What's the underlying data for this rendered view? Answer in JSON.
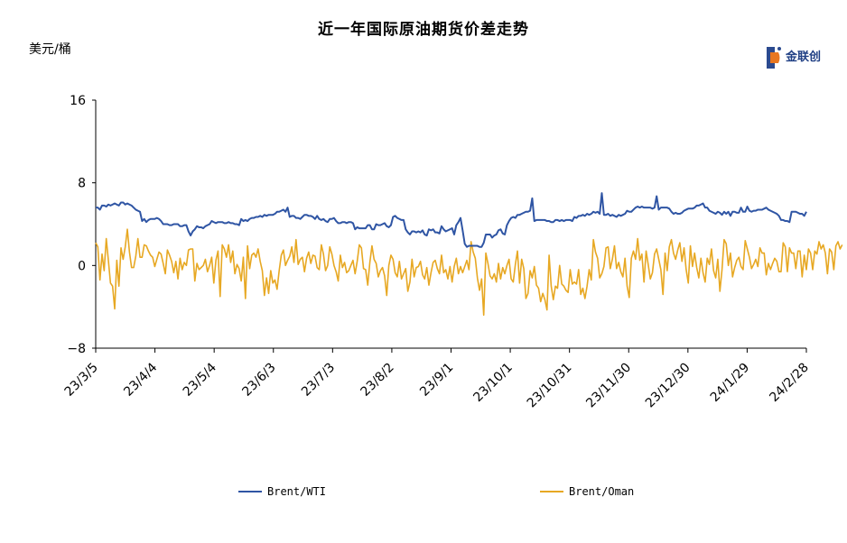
{
  "title": "近一年国际原油期货价差走势",
  "unit_label": "美元/桶",
  "logo": {
    "text": "金联创"
  },
  "chart_data": {
    "type": "line",
    "title": "近一年国际原油期货价差走势",
    "ylabel": "美元/桶",
    "ylim": [
      -8,
      16
    ],
    "y_ticks": [
      "16",
      "8",
      "0",
      "−8"
    ],
    "y_tick_values": [
      16,
      8,
      0,
      -8
    ],
    "x_tick_labels": [
      "23/3/5",
      "23/4/4",
      "23/5/4",
      "23/6/3",
      "23/7/3",
      "23/8/2",
      "23/9/1",
      "23/10/1",
      "23/10/31",
      "23/11/30",
      "23/12/30",
      "24/1/29",
      "24/2/28"
    ],
    "legend_position": "bottom",
    "grid": false,
    "series": [
      {
        "name": "Brent/WTI",
        "color": "#2f55a4",
        "values": [
          5.6,
          5.6,
          5.4,
          5.8,
          5.8,
          5.7,
          5.9,
          5.8,
          5.9,
          6.0,
          5.9,
          5.8,
          6.1,
          6.1,
          5.9,
          6.0,
          5.9,
          5.8,
          5.6,
          5.4,
          5.3,
          5.2,
          4.3,
          4.5,
          4.2,
          4.4,
          4.5,
          4.5,
          4.5,
          4.6,
          4.5,
          4.3,
          4.0,
          4.0,
          4.0,
          3.9,
          3.9,
          4.0,
          4.0,
          4.0,
          3.8,
          3.8,
          3.9,
          3.9,
          3.3,
          2.9,
          3.3,
          3.5,
          3.8,
          3.7,
          3.7,
          3.6,
          3.8,
          3.9,
          4.0,
          4.3,
          4.2,
          4.1,
          4.2,
          4.2,
          4.2,
          4.1,
          4.1,
          4.2,
          4.1,
          4.1,
          4.0,
          4.0,
          3.9,
          4.5,
          4.3,
          4.4,
          4.3,
          4.5,
          4.6,
          4.6,
          4.7,
          4.7,
          4.8,
          4.7,
          4.9,
          4.8,
          4.9,
          4.9,
          4.9,
          5.0,
          5.2,
          5.2,
          5.3,
          5.4,
          5.2,
          5.6,
          4.7,
          4.8,
          4.8,
          4.6,
          4.6,
          4.5,
          4.7,
          4.9,
          4.9,
          4.8,
          4.8,
          4.7,
          4.5,
          4.8,
          4.5,
          4.4,
          4.5,
          4.3,
          4.2,
          4.5,
          4.5,
          4.6,
          4.3,
          4.1,
          4.1,
          4.2,
          4.2,
          4.1,
          4.2,
          4.2,
          4.1,
          3.5,
          3.7,
          3.6,
          3.6,
          3.6,
          3.6,
          3.9,
          3.9,
          3.5,
          3.5,
          4.0,
          3.9,
          3.9,
          4.0,
          4.1,
          3.8,
          3.7,
          3.9,
          4.7,
          4.8,
          4.6,
          4.5,
          4.4,
          4.4,
          3.5,
          3.2,
          3.0,
          3.3,
          3.3,
          3.2,
          3.3,
          3.2,
          3.4,
          3.0,
          2.9,
          3.5,
          3.4,
          3.5,
          3.2,
          3.2,
          3.1,
          3.8,
          3.5,
          3.3,
          3.4,
          3.5,
          3.6,
          3.0,
          3.9,
          4.2,
          4.6,
          3.4,
          2.1,
          1.8,
          1.9,
          1.9,
          1.9,
          1.9,
          1.9,
          1.8,
          1.8,
          2.2,
          3.0,
          3.0,
          3.0,
          2.7,
          2.9,
          3.0,
          3.4,
          3.5,
          3.1,
          3.0,
          3.9,
          4.3,
          4.6,
          4.7,
          4.6,
          4.9,
          4.9,
          5.0,
          5.1,
          5.2,
          5.2,
          5.3,
          6.5,
          4.3,
          4.4,
          4.4,
          4.4,
          4.4,
          4.4,
          4.3,
          4.3,
          4.2,
          4.2,
          4.4,
          4.4,
          4.3,
          4.4,
          4.3,
          4.4,
          4.4,
          4.4,
          4.3,
          4.7,
          4.6,
          4.8,
          4.8,
          4.9,
          4.8,
          5.0,
          4.9,
          5.0,
          5.2,
          5.1,
          5.2,
          5.0,
          7.0,
          4.9,
          4.9,
          5.0,
          4.8,
          4.9,
          4.8,
          4.7,
          4.9,
          4.8,
          4.9,
          5.0,
          5.3,
          5.2,
          5.2,
          5.4,
          5.6,
          5.7,
          5.6,
          5.7,
          5.6,
          5.6,
          5.6,
          5.6,
          5.5,
          5.6,
          6.7,
          5.4,
          5.6,
          5.6,
          5.6,
          5.6,
          5.5,
          5.2,
          5.0,
          5.1,
          5.0,
          5.0,
          5.1,
          5.3,
          5.4,
          5.5,
          5.5,
          5.5,
          5.6,
          5.8,
          5.8,
          5.9,
          6.0,
          5.6,
          5.6,
          5.3,
          5.2,
          5.1,
          5.0,
          5.2,
          5.1,
          4.9,
          5.2,
          5.0,
          5.2,
          4.8,
          5.2,
          5.2,
          5.1,
          5.1,
          5.6,
          5.2,
          5.2,
          5.7,
          5.3,
          5.2,
          5.3,
          5.3,
          5.4,
          5.4,
          5.4,
          5.5,
          5.6,
          5.4,
          5.3,
          5.2,
          5.1,
          5.0,
          4.8,
          4.4,
          4.4,
          4.3,
          4.3,
          4.2,
          5.2,
          5.2,
          5.2,
          5.1,
          5.0,
          5.0,
          4.8,
          5.2
        ]
      },
      {
        "name": "Brent/Oman",
        "color": "#e7a823",
        "values": [
          2.2,
          1.8,
          -1.4,
          1.1,
          -0.5,
          2.6,
          0.5,
          -1.7,
          -2.0,
          -4.2,
          0.5,
          -2.0,
          1.7,
          0.6,
          1.8,
          3.5,
          1.3,
          -0.2,
          -0.2,
          0.9,
          2.6,
          0.8,
          0.8,
          2.0,
          1.9,
          1.4,
          1.0,
          0.8,
          -0.1,
          0.6,
          1.3,
          1.1,
          0.2,
          -0.8,
          1.5,
          1.0,
          0.4,
          -0.7,
          0.4,
          -1.3,
          0.7,
          -0.4,
          0.3,
          0.0,
          1.5,
          1.6,
          1.6,
          -1.5,
          0.2,
          -0.4,
          -0.2,
          0.0,
          0.6,
          -0.6,
          0.0,
          0.8,
          -1.7,
          0.5,
          1.4,
          -3.0,
          2.0,
          1.6,
          0.8,
          2.0,
          0.3,
          1.4,
          -0.8,
          0.1,
          -0.3,
          -1.5,
          0.8,
          -3.2,
          1.9,
          -0.3,
          1.0,
          1.2,
          0.8,
          1.6,
          0.4,
          -0.5,
          -2.9,
          -1.2,
          -2.7,
          -0.5,
          -1.7,
          -1.4,
          -2.3,
          -0.5,
          1.0,
          1.5,
          0.0,
          0.5,
          0.9,
          1.8,
          0.3,
          2.5,
          0.1,
          0.6,
          0.8,
          -0.6,
          0.7,
          1.3,
          0.2,
          1.0,
          0.9,
          -0.2,
          -0.4,
          2.0,
          1.1,
          -0.5,
          0.0,
          1.8,
          1.1,
          0.0,
          -0.6,
          -1.5,
          1.0,
          -0.2,
          0.3,
          -0.7,
          -0.5,
          0.0,
          0.5,
          -0.8,
          0.4,
          2.0,
          1.7,
          -0.3,
          -0.4,
          -1.9,
          0.3,
          1.9,
          0.6,
          0.2,
          -1.1,
          -0.5,
          -0.2,
          -1.0,
          -2.9,
          0.0,
          1.0,
          0.6,
          -0.7,
          -1.1,
          0.4,
          -1.3,
          -0.8,
          -0.3,
          -2.5,
          -1.6,
          0.6,
          -1.1,
          -0.2,
          -0.1,
          0.4,
          -0.9,
          -1.3,
          -0.2,
          -1.9,
          -0.7,
          0.3,
          0.5,
          -0.3,
          -0.8,
          1.0,
          -0.7,
          -0.4,
          -1.3,
          -0.1,
          -1.6,
          -0.1,
          0.7,
          -0.8,
          -0.1,
          -0.7,
          -0.1,
          0.5,
          -0.4,
          2.3,
          1.3,
          0.7,
          -1.2,
          -2.4,
          -1.3,
          -4.8,
          1.2,
          0.2,
          -1.0,
          -1.3,
          -0.8,
          -1.6,
          0.2,
          -1.3,
          -0.2,
          -0.8,
          0.0,
          0.6,
          -1.3,
          -1.6,
          0.1,
          1.4,
          -1.7,
          0.6,
          -0.3,
          -3.2,
          -2.7,
          -0.5,
          -1.2,
          -0.1,
          -1.9,
          -2.2,
          -3.5,
          -2.7,
          -3.3,
          -4.3,
          1.0,
          -2.0,
          -3.3,
          -2.0,
          -2.2,
          0.0,
          -1.8,
          -2.0,
          -2.4,
          -2.6,
          -0.4,
          -1.8,
          -1.6,
          -1.8,
          -0.4,
          -2.8,
          -2.2,
          -3.2,
          -2.0,
          -0.4,
          -1.4,
          2.5,
          1.3,
          0.7,
          -1.2,
          -0.8,
          -0.1,
          1.7,
          1.8,
          -0.3,
          0.6,
          1.9,
          -0.3,
          0.3,
          -0.6,
          -1.1,
          0.7,
          -2.0,
          -3.1,
          0.7,
          1.4,
          0.6,
          2.6,
          0.5,
          1.1,
          -1.6,
          1.4,
          0.1,
          -1.3,
          -0.7,
          1.1,
          1.6,
          0.6,
          -0.4,
          -2.8,
          1.2,
          -0.5,
          1.8,
          2.5,
          1.2,
          0.6,
          1.5,
          2.2,
          0.4,
          1.7,
          -0.4,
          -1.7,
          1.9,
          -0.1,
          1.2,
          -0.2,
          -1.2,
          0.7,
          -0.7,
          -1.6,
          0.7,
          0.1,
          1.6,
          -0.5,
          -1.2,
          0.6,
          -2.5,
          -0.4,
          2.5,
          2.1,
          0.0,
          1.2,
          -1.1,
          -0.2,
          0.5,
          0.8,
          -0.1,
          -0.4,
          2.4,
          1.6,
          0.8,
          -0.3,
          0.1,
          0.6,
          -0.1,
          1.7,
          1.2,
          1.2,
          -0.9,
          0.2,
          -0.4,
          0.2,
          0.7,
          0.4,
          -0.6,
          -0.6,
          2.2,
          1.8,
          -0.6,
          1.7,
          1.2,
          1.2,
          -0.3,
          1.4,
          1.4,
          -1.1,
          1.0,
          -0.4,
          1.6,
          1.2,
          -0.4,
          1.4,
          1.1,
          2.3,
          1.6,
          2.0,
          1.2,
          -0.8,
          1.6,
          1.3,
          -0.4,
          1.9,
          2.3,
          1.6,
          2.0
        ]
      }
    ]
  }
}
